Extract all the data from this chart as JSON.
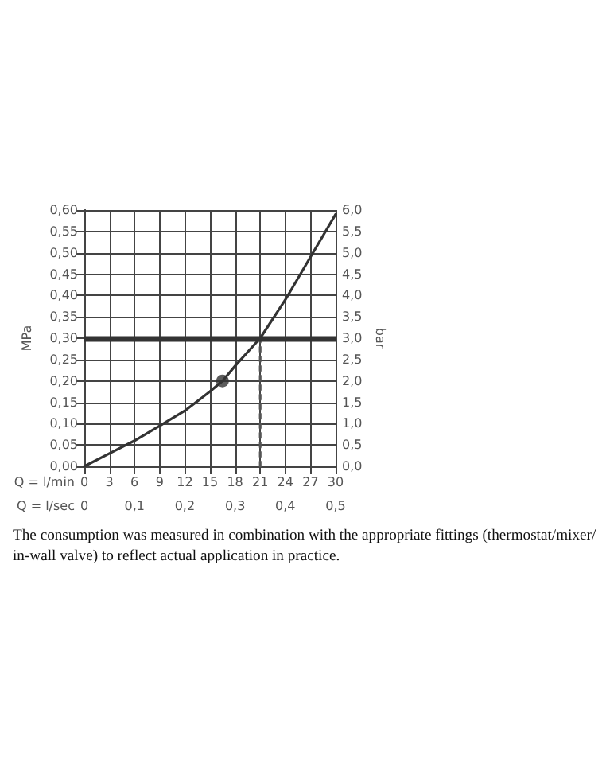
{
  "chart_data": {
    "type": "line",
    "xlabel": "Q = l/min",
    "x2label": "Q = l/sec",
    "ylabel": "MPa",
    "y2label": "bar",
    "annotations": [
      "The consumption was measured in combination with the appropriate fittings (thermostat/mixer/ in-wall valve) to reflect actual application in practice."
    ],
    "xlim": [
      0,
      30
    ],
    "xticks": [
      0,
      3,
      6,
      9,
      12,
      15,
      18,
      21,
      24,
      27,
      30
    ],
    "x2lim": [
      0,
      0.5
    ],
    "x2ticks": [
      0,
      {
        "value": 0.1,
        "label": "0,1"
      },
      {
        "value": 0.2,
        "label": "0,2"
      },
      {
        "value": 0.3,
        "label": "0,3"
      },
      {
        "value": 0.4,
        "label": "0,4"
      },
      {
        "value": 0.5,
        "label": "0,5"
      }
    ],
    "ylim": [
      0,
      0.6
    ],
    "yticks": [
      {
        "value": 0,
        "label": "0,00"
      },
      {
        "value": 0.05,
        "label": "0,05"
      },
      {
        "value": 0.1,
        "label": "0,10"
      },
      {
        "value": 0.15,
        "label": "0,15"
      },
      {
        "value": 0.2,
        "label": "0,20"
      },
      {
        "value": 0.25,
        "label": "0,25"
      },
      {
        "value": 0.3,
        "label": "0,30"
      },
      {
        "value": 0.35,
        "label": "0,35"
      },
      {
        "value": 0.4,
        "label": "0,40"
      },
      {
        "value": 0.45,
        "label": "0,45"
      },
      {
        "value": 0.5,
        "label": "0,50"
      },
      {
        "value": 0.55,
        "label": "0,55"
      },
      {
        "value": 0.6,
        "label": "0,60"
      }
    ],
    "y2lim": [
      0,
      6
    ],
    "y2ticks": [
      {
        "value": 0,
        "label": "0,0"
      },
      {
        "value": 0.5,
        "label": "0,5"
      },
      {
        "value": 1,
        "label": "1,0"
      },
      {
        "value": 1.5,
        "label": "1,5"
      },
      {
        "value": 2,
        "label": "2,0"
      },
      {
        "value": 2.5,
        "label": "2,5"
      },
      {
        "value": 3,
        "label": "3,0"
      },
      {
        "value": 3.5,
        "label": "3,5"
      },
      {
        "value": 4,
        "label": "4,0"
      },
      {
        "value": 4.5,
        "label": "4,5"
      },
      {
        "value": 5,
        "label": "5,0"
      },
      {
        "value": 5.5,
        "label": "5,5"
      },
      {
        "value": 6,
        "label": "6,0"
      }
    ],
    "grid": true,
    "marker": "none",
    "series": [
      {
        "color": "#333333",
        "x": [
          0,
          3,
          6,
          9,
          12,
          15,
          16.5,
          18,
          21,
          24,
          27,
          30
        ],
        "values": [
          0,
          0.03,
          0.06,
          0.095,
          0.13,
          0.175,
          0.2,
          0.235,
          0.3,
          0.39,
          0.49,
          0.59
        ]
      },
      {
        "type": "line",
        "color": "#555555",
        "line_style": "dashed",
        "x": [
          21,
          21
        ],
        "values": [
          0,
          0.3
        ]
      },
      {
        "type": "scatter",
        "color": "#333333",
        "marker": "circle",
        "x": [
          16.5
        ],
        "values": [
          0.2
        ]
      }
    ],
    "ref_lines": [
      {
        "axis": "y",
        "value": 0.3,
        "color": "#333333"
      }
    ]
  }
}
